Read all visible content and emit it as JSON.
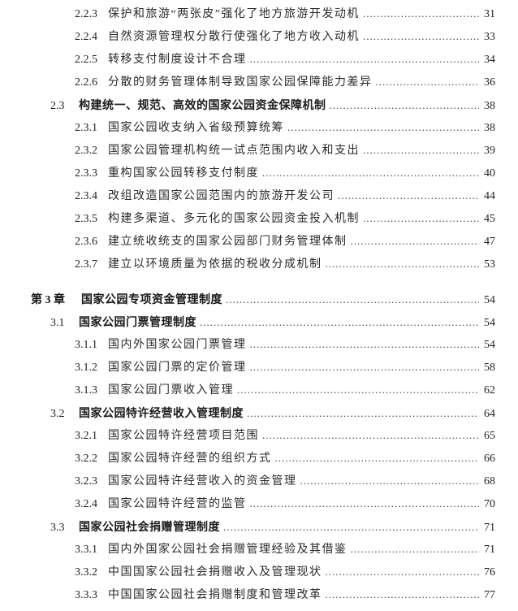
{
  "page": {
    "background_color": "#ffffff",
    "text_color": "#1f1f1f",
    "kind": "table-of-contents"
  },
  "toc": {
    "entries": [
      {
        "level": 3,
        "number": "2.2.3",
        "title": "保护和旅游“两张皮”强化了地方旅游开发动机",
        "page": "31"
      },
      {
        "level": 3,
        "number": "2.2.4",
        "title": "自然资源管理权分散行使强化了地方收入动机",
        "page": "33"
      },
      {
        "level": 3,
        "number": "2.2.5",
        "title": "转移支付制度设计不合理",
        "page": "34"
      },
      {
        "level": 3,
        "number": "2.2.6",
        "title": "分散的财务管理体制导致国家公园保障能力差异",
        "page": "36"
      },
      {
        "level": 2,
        "number": "2.3",
        "title": "构建统一、规范、高效的国家公园资金保障机制",
        "page": "38"
      },
      {
        "level": 3,
        "number": "2.3.1",
        "title": "国家公园收支纳入省级预算统筹",
        "page": "38"
      },
      {
        "level": 3,
        "number": "2.3.2",
        "title": "国家公园管理机构统一试点范围内收入和支出",
        "page": "39"
      },
      {
        "level": 3,
        "number": "2.3.3",
        "title": "重构国家公园转移支付制度",
        "page": "40"
      },
      {
        "level": 3,
        "number": "2.3.4",
        "title": "改组改造国家公园范围内的旅游开发公司",
        "page": "44"
      },
      {
        "level": 3,
        "number": "2.3.5",
        "title": "构建多渠道、多元化的国家公园资金投入机制",
        "page": "45"
      },
      {
        "level": 3,
        "number": "2.3.6",
        "title": "建立统收统支的国家公园部门财务管理体制",
        "page": "47"
      },
      {
        "level": 3,
        "number": "2.3.7",
        "title": "建立以环境质量为依据的税收分成机制",
        "page": "53"
      },
      {
        "level": 1,
        "number": "第 3 章",
        "title": "国家公园专项资金管理制度",
        "page": "54"
      },
      {
        "level": 2,
        "number": "3.1",
        "title": "国家公园门票管理制度",
        "page": "54"
      },
      {
        "level": 3,
        "number": "3.1.1",
        "title": "国内外国家公园门票管理",
        "page": "54"
      },
      {
        "level": 3,
        "number": "3.1.2",
        "title": "国家公园门票的定价管理",
        "page": "58"
      },
      {
        "level": 3,
        "number": "3.1.3",
        "title": "国家公园门票收入管理",
        "page": "62"
      },
      {
        "level": 2,
        "number": "3.2",
        "title": "国家公园特许经营收入管理制度",
        "page": "64"
      },
      {
        "level": 3,
        "number": "3.2.1",
        "title": "国家公园特许经营项目范围",
        "page": "65"
      },
      {
        "level": 3,
        "number": "3.2.2",
        "title": "国家公园特许经营的组织方式",
        "page": "66"
      },
      {
        "level": 3,
        "number": "3.2.3",
        "title": "国家公园特许经营收入的资金管理",
        "page": "68"
      },
      {
        "level": 3,
        "number": "3.2.4",
        "title": "国家公园特许经营的监管",
        "page": "70"
      },
      {
        "level": 2,
        "number": "3.3",
        "title": "国家公园社会捐赠管理制度",
        "page": "71"
      },
      {
        "level": 3,
        "number": "3.3.1",
        "title": "国内外国家公园社会捐赠管理经验及其借鉴",
        "page": "71"
      },
      {
        "level": 3,
        "number": "3.3.2",
        "title": "中国国家公园社会捐赠收入及管理现状",
        "page": "76"
      },
      {
        "level": 3,
        "number": "3.3.3",
        "title": "中国国家公园社会捐赠制度和管理改革",
        "page": "77"
      }
    ]
  }
}
